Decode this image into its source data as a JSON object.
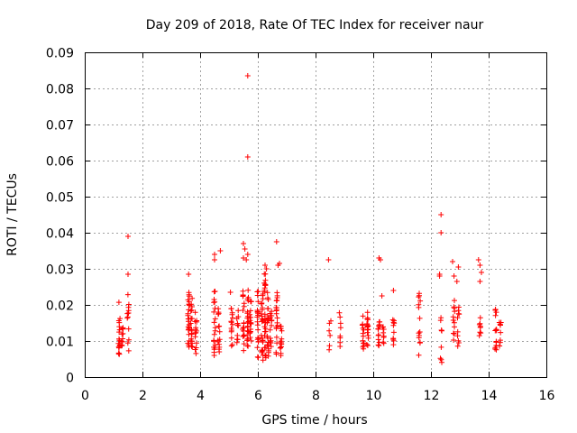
{
  "chart_data": {
    "type": "scatter",
    "title": "Day 209 of 2018, Rate Of TEC Index for receiver naur",
    "xlabel": "GPS time / hours",
    "ylabel": "ROTI / TECUs",
    "xlim": [
      0,
      16
    ],
    "ylim": [
      0,
      0.09
    ],
    "grid": true,
    "marker": "+",
    "marker_color": "#ff0000",
    "xticks": [
      0,
      2,
      4,
      6,
      8,
      10,
      12,
      14,
      16
    ],
    "xtick_labels": [
      "0",
      "2",
      "4",
      "6",
      "8",
      "10",
      "12",
      "14",
      "16"
    ],
    "yticks": [
      0,
      0.01,
      0.02,
      0.03,
      0.04,
      0.05,
      0.06,
      0.07,
      0.08,
      0.09
    ],
    "ytick_labels": [
      "0",
      "0.01",
      "0.02",
      "0.03",
      "0.04",
      "0.05",
      "0.06",
      "0.07",
      "0.08",
      "0.09"
    ],
    "clusters": [
      {
        "x": 1.2,
        "ymin": 0.0055,
        "ymax": 0.021,
        "n": 18
      },
      {
        "x": 1.3,
        "ymin": 0.007,
        "ymax": 0.016,
        "n": 10
      },
      {
        "x": 1.5,
        "ymin": 0.007,
        "ymax": 0.024,
        "n": 12
      },
      {
        "x": 3.6,
        "ymin": 0.0065,
        "ymax": 0.024,
        "n": 26
      },
      {
        "x": 3.7,
        "ymin": 0.008,
        "ymax": 0.022,
        "n": 18
      },
      {
        "x": 3.85,
        "ymin": 0.006,
        "ymax": 0.018,
        "n": 14
      },
      {
        "x": 4.5,
        "ymin": 0.005,
        "ymax": 0.024,
        "n": 20
      },
      {
        "x": 4.65,
        "ymin": 0.007,
        "ymax": 0.019,
        "n": 14
      },
      {
        "x": 5.1,
        "ymin": 0.007,
        "ymax": 0.02,
        "n": 14
      },
      {
        "x": 5.3,
        "ymin": 0.009,
        "ymax": 0.02,
        "n": 10
      },
      {
        "x": 5.5,
        "ymin": 0.007,
        "ymax": 0.024,
        "n": 18
      },
      {
        "x": 5.65,
        "ymin": 0.008,
        "ymax": 0.026,
        "n": 20
      },
      {
        "x": 5.75,
        "ymin": 0.006,
        "ymax": 0.022,
        "n": 18
      },
      {
        "x": 6.0,
        "ymin": 0.005,
        "ymax": 0.024,
        "n": 22
      },
      {
        "x": 6.15,
        "ymin": 0.004,
        "ymax": 0.023,
        "n": 24
      },
      {
        "x": 6.25,
        "ymin": 0.005,
        "ymax": 0.029,
        "n": 24
      },
      {
        "x": 6.35,
        "ymin": 0.005,
        "ymax": 0.024,
        "n": 22
      },
      {
        "x": 6.45,
        "ymin": 0.007,
        "ymax": 0.02,
        "n": 14
      },
      {
        "x": 6.65,
        "ymin": 0.005,
        "ymax": 0.025,
        "n": 20
      },
      {
        "x": 6.8,
        "ymin": 0.005,
        "ymax": 0.018,
        "n": 14
      },
      {
        "x": 8.5,
        "ymin": 0.007,
        "ymax": 0.016,
        "n": 6
      },
      {
        "x": 8.85,
        "ymin": 0.005,
        "ymax": 0.019,
        "n": 8
      },
      {
        "x": 9.65,
        "ymin": 0.006,
        "ymax": 0.017,
        "n": 14
      },
      {
        "x": 9.8,
        "ymin": 0.008,
        "ymax": 0.018,
        "n": 16
      },
      {
        "x": 10.2,
        "ymin": 0.006,
        "ymax": 0.016,
        "n": 14
      },
      {
        "x": 10.35,
        "ymin": 0.008,
        "ymax": 0.014,
        "n": 8
      },
      {
        "x": 10.7,
        "ymin": 0.007,
        "ymax": 0.017,
        "n": 10
      },
      {
        "x": 11.6,
        "ymin": 0.006,
        "ymax": 0.024,
        "n": 14
      },
      {
        "x": 12.35,
        "ymin": 0.003,
        "ymax": 0.017,
        "n": 8
      },
      {
        "x": 12.8,
        "ymin": 0.008,
        "ymax": 0.025,
        "n": 12
      },
      {
        "x": 12.95,
        "ymin": 0.006,
        "ymax": 0.02,
        "n": 10
      },
      {
        "x": 13.7,
        "ymin": 0.011,
        "ymax": 0.017,
        "n": 8
      },
      {
        "x": 14.25,
        "ymin": 0.007,
        "ymax": 0.02,
        "n": 14
      },
      {
        "x": 14.4,
        "ymin": 0.008,
        "ymax": 0.016,
        "n": 8
      }
    ],
    "outliers": [
      [
        1.5,
        0.039
      ],
      [
        1.5,
        0.0285
      ],
      [
        3.6,
        0.0285
      ],
      [
        4.5,
        0.034
      ],
      [
        4.5,
        0.0325
      ],
      [
        4.7,
        0.035
      ],
      [
        5.05,
        0.0235
      ],
      [
        5.5,
        0.037
      ],
      [
        5.55,
        0.0355
      ],
      [
        5.65,
        0.034
      ],
      [
        5.5,
        0.033
      ],
      [
        5.6,
        0.0325
      ],
      [
        5.65,
        0.0835
      ],
      [
        5.65,
        0.061
      ],
      [
        6.25,
        0.031
      ],
      [
        6.3,
        0.03
      ],
      [
        6.65,
        0.0375
      ],
      [
        6.75,
        0.0315
      ],
      [
        6.7,
        0.031
      ],
      [
        8.45,
        0.0325
      ],
      [
        10.2,
        0.033
      ],
      [
        10.25,
        0.0325
      ],
      [
        10.3,
        0.0225
      ],
      [
        10.7,
        0.024
      ],
      [
        12.35,
        0.045
      ],
      [
        12.35,
        0.04
      ],
      [
        12.3,
        0.0285
      ],
      [
        12.3,
        0.028
      ],
      [
        12.75,
        0.032
      ],
      [
        12.95,
        0.0305
      ],
      [
        12.8,
        0.028
      ],
      [
        12.9,
        0.0265
      ],
      [
        13.65,
        0.0325
      ],
      [
        13.7,
        0.031
      ],
      [
        13.75,
        0.029
      ],
      [
        13.7,
        0.0265
      ]
    ]
  }
}
